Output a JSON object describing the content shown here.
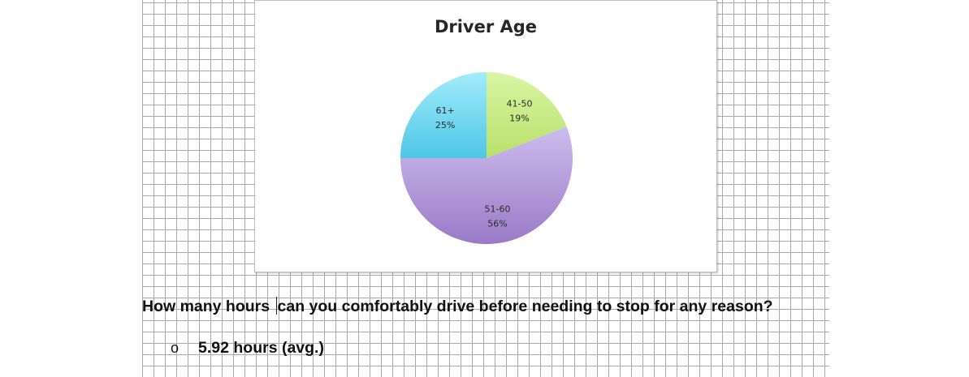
{
  "chart_data": {
    "type": "pie",
    "title": "Driver Age",
    "slices": [
      {
        "label": "41-50",
        "percent_label": "19%",
        "value": 19,
        "color": "#ccee88"
      },
      {
        "label": "51-60",
        "percent_label": "56%",
        "value": 56,
        "color": "#b29ad8"
      },
      {
        "label": "61+",
        "percent_label": "25%",
        "value": 25,
        "color": "#6fd3ee"
      }
    ]
  },
  "document": {
    "question_part1": "How many hours",
    "question_part2": "can you comfortably drive before needing to stop for any reason?",
    "bullet_symbol": "o",
    "answer": "5.92 hours (avg.)"
  }
}
